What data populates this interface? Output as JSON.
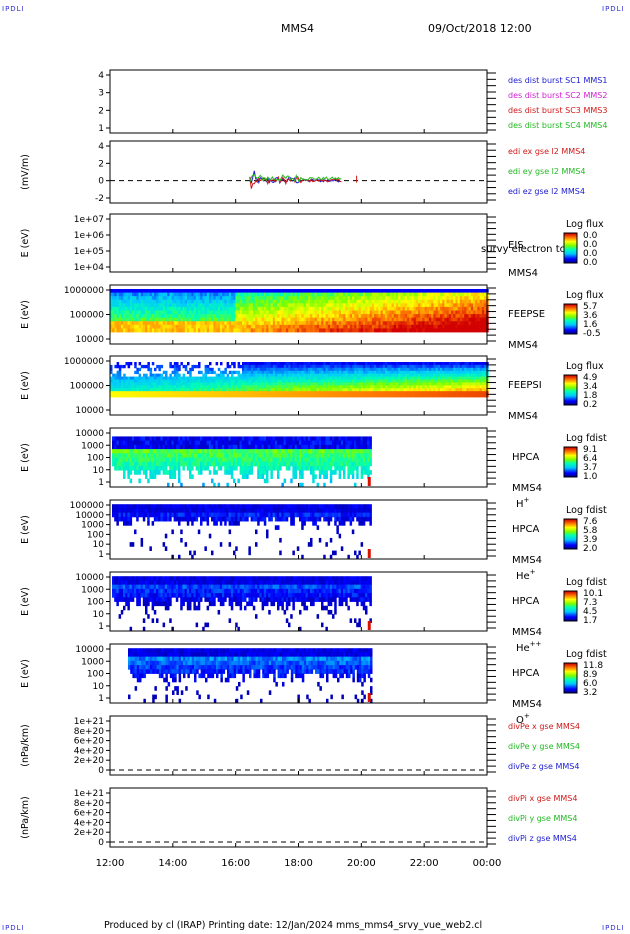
{
  "corners": [
    "IPDLI",
    "IPDLI",
    "IPDLI",
    "IPDLI"
  ],
  "header": {
    "mission": "MMS4",
    "datetime": "09/Oct/2018 12:00"
  },
  "footer": "Produced by cl (IRAP)   Printing date: 12/Jan/2024   mms_mms4_srvy_vue_web2.cl",
  "colors": {
    "axis": "#000000",
    "spacecraft1": "#1a1ad0",
    "spacecraft2": "#d020d0",
    "spacecraft3": "#d01818",
    "spacecraft4": "#22b822"
  },
  "x_axis": {
    "ticks": [
      "12:00",
      "14:00",
      "16:00",
      "18:00",
      "20:00",
      "22:00",
      "00:00"
    ],
    "range_hours": [
      12,
      24
    ],
    "data_end_hour": 20.3
  },
  "chart_data": [
    {
      "id": "dist",
      "type": "line",
      "ylabel": "",
      "y_ticks": [
        "4",
        "3",
        "2",
        "1"
      ],
      "legend": [
        {
          "text": "des dist burst SC1 MMS1",
          "color": "#1a1ad0"
        },
        {
          "text": "des dist burst SC2 MMS2",
          "color": "#d020d0"
        },
        {
          "text": "des dist burst SC3 MMS3",
          "color": "#d01818"
        },
        {
          "text": "des dist burst SC4 MMS4",
          "color": "#22b822"
        }
      ]
    },
    {
      "id": "edi",
      "type": "line",
      "ylabel": "(mV/m)",
      "y_ticks": [
        "4",
        "2",
        "0",
        "-2"
      ],
      "legend": [
        {
          "text": "edi ex gse l2 MMS4",
          "color": "#d01818"
        },
        {
          "text": "edi ey gse l2 MMS4",
          "color": "#22b822"
        },
        {
          "text": "edi ez gse l2 MMS4",
          "color": "#1a1ad0"
        }
      ]
    },
    {
      "id": "eis",
      "type": "heatmap",
      "ylabel": "E (eV)",
      "y_ticks": [
        "1e+07",
        "1e+06",
        "1e+05",
        "1e+04"
      ],
      "labels": [
        "EIS",
        "MMS4"
      ],
      "overlay_text": "survy electron to",
      "colorbar": {
        "title": "Log flux",
        "ticks": [
          "0.0",
          "0.0",
          "0.0",
          "0.0"
        ]
      }
    },
    {
      "id": "feepse",
      "type": "heatmap",
      "ylabel": "E (eV)",
      "y_ticks": [
        "1000000",
        "100000",
        "10000"
      ],
      "labels": [
        "FEEPSE",
        "MMS4"
      ],
      "colorbar": {
        "title": "Log flux",
        "ticks": [
          "5.7",
          "3.6",
          "1.6",
          "-0.5"
        ]
      }
    },
    {
      "id": "feepsi",
      "type": "heatmap",
      "ylabel": "E (eV)",
      "y_ticks": [
        "1000000",
        "100000",
        "10000"
      ],
      "labels": [
        "FEEPSI",
        "MMS4"
      ],
      "colorbar": {
        "title": "Log flux",
        "ticks": [
          "4.9",
          "3.4",
          "1.8",
          "0.2"
        ]
      }
    },
    {
      "id": "hpca_h",
      "type": "heatmap",
      "ylabel": "E (eV)",
      "y_ticks": [
        "10000",
        "1000",
        "100",
        "10",
        "1"
      ],
      "labels": [
        "HPCA",
        "MMS4"
      ],
      "species": "H",
      "charge": "+",
      "colorbar": {
        "title": "Log fdist",
        "ticks": [
          "9.1",
          "6.4",
          "3.7",
          "1.0"
        ]
      }
    },
    {
      "id": "hpca_he",
      "type": "heatmap",
      "ylabel": "E (eV)",
      "y_ticks": [
        "100000",
        "10000",
        "1000",
        "100",
        "10",
        "1"
      ],
      "labels": [
        "HPCA",
        "MMS4"
      ],
      "species": "He",
      "charge": "+",
      "colorbar": {
        "title": "Log fdist",
        "ticks": [
          "7.6",
          "5.8",
          "3.9",
          "2.0"
        ]
      }
    },
    {
      "id": "hpca_he2",
      "type": "heatmap",
      "ylabel": "E (eV)",
      "y_ticks": [
        "10000",
        "1000",
        "100",
        "10",
        "1"
      ],
      "labels": [
        "HPCA",
        "MMS4"
      ],
      "species": "He",
      "charge": "++",
      "colorbar": {
        "title": "Log fdist",
        "ticks": [
          "10.1",
          "7.3",
          "4.5",
          "1.7"
        ]
      }
    },
    {
      "id": "hpca_o",
      "type": "heatmap",
      "ylabel": "E (eV)",
      "y_ticks": [
        "10000",
        "1000",
        "100",
        "10",
        "1"
      ],
      "labels": [
        "HPCA",
        "MMS4"
      ],
      "species": "O",
      "charge": "+",
      "colorbar": {
        "title": "Log fdist",
        "ticks": [
          "11.8",
          "8.9",
          "6.0",
          "3.2"
        ]
      }
    },
    {
      "id": "divpe",
      "type": "line",
      "ylabel": "(nPa/km)",
      "y_ticks": [
        "1e+21",
        "8e+20",
        "6e+20",
        "4e+20",
        "2e+20",
        "0"
      ],
      "legend": [
        {
          "text": "divPe x gse MMS4",
          "color": "#d01818"
        },
        {
          "text": "divPe y gse MMS4",
          "color": "#22b822"
        },
        {
          "text": "divPe z gse MMS4",
          "color": "#1a1ad0"
        }
      ]
    },
    {
      "id": "divpi",
      "type": "line",
      "ylabel": "(nPa/km)",
      "y_ticks": [
        "1e+21",
        "8e+20",
        "6e+20",
        "4e+20",
        "2e+20",
        "0"
      ],
      "legend": [
        {
          "text": "divPi x gse MMS4",
          "color": "#d01818"
        },
        {
          "text": "divPi y gse MMS4",
          "color": "#22b822"
        },
        {
          "text": "divPi z gse MMS4",
          "color": "#1a1ad0"
        }
      ]
    }
  ]
}
